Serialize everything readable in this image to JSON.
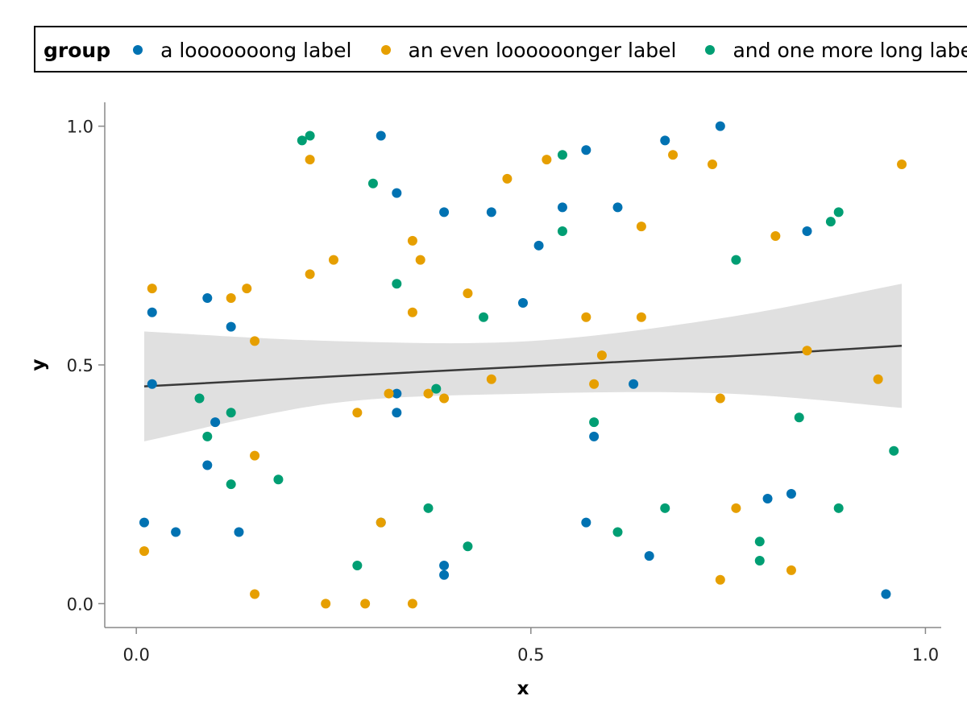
{
  "chart_data": {
    "type": "scatter",
    "xlabel": "x",
    "ylabel": "y",
    "xlim": [
      -0.04,
      1.02
    ],
    "ylim": [
      -0.05,
      1.05
    ],
    "xticks": [
      0.0,
      0.5,
      1.0
    ],
    "xtick_labels": [
      "0.0",
      "0.5",
      "1.0"
    ],
    "yticks": [
      0.0,
      0.5,
      1.0
    ],
    "ytick_labels": [
      "0.0",
      "0.5",
      "1.0"
    ],
    "grid": false,
    "legend": {
      "title": "group",
      "placement": "top",
      "entries": [
        "a looooooong label",
        "an even loooooonger label",
        "and one more long label"
      ]
    },
    "series": [
      {
        "name": "a looooooong label",
        "color": "#0072b2",
        "points": [
          [
            0.01,
            0.17
          ],
          [
            0.02,
            0.61
          ],
          [
            0.02,
            0.46
          ],
          [
            0.05,
            0.15
          ],
          [
            0.09,
            0.64
          ],
          [
            0.09,
            0.29
          ],
          [
            0.1,
            0.38
          ],
          [
            0.12,
            0.58
          ],
          [
            0.13,
            0.15
          ],
          [
            0.31,
            0.98
          ],
          [
            0.33,
            0.44
          ],
          [
            0.33,
            0.4
          ],
          [
            0.33,
            0.86
          ],
          [
            0.31,
            0.17
          ],
          [
            0.39,
            0.82
          ],
          [
            0.39,
            0.08
          ],
          [
            0.39,
            0.06
          ],
          [
            0.45,
            0.82
          ],
          [
            0.49,
            0.63
          ],
          [
            0.51,
            0.75
          ],
          [
            0.54,
            0.83
          ],
          [
            0.57,
            0.95
          ],
          [
            0.57,
            0.17
          ],
          [
            0.58,
            0.35
          ],
          [
            0.61,
            0.83
          ],
          [
            0.63,
            0.46
          ],
          [
            0.65,
            0.1
          ],
          [
            0.67,
            0.97
          ],
          [
            0.74,
            1.0
          ],
          [
            0.8,
            0.22
          ],
          [
            0.83,
            0.23
          ],
          [
            0.85,
            0.78
          ],
          [
            0.95,
            0.02
          ]
        ]
      },
      {
        "name": "an even loooooonger label",
        "color": "#e69f00",
        "points": [
          [
            0.01,
            0.11
          ],
          [
            0.02,
            0.66
          ],
          [
            0.12,
            0.64
          ],
          [
            0.14,
            0.66
          ],
          [
            0.15,
            0.55
          ],
          [
            0.15,
            0.31
          ],
          [
            0.15,
            0.02
          ],
          [
            0.22,
            0.93
          ],
          [
            0.22,
            0.69
          ],
          [
            0.24,
            0.0
          ],
          [
            0.25,
            0.72
          ],
          [
            0.28,
            0.4
          ],
          [
            0.29,
            0.0
          ],
          [
            0.31,
            0.17
          ],
          [
            0.32,
            0.44
          ],
          [
            0.35,
            0.76
          ],
          [
            0.35,
            0.61
          ],
          [
            0.36,
            0.72
          ],
          [
            0.35,
            0.0
          ],
          [
            0.37,
            0.44
          ],
          [
            0.39,
            0.43
          ],
          [
            0.42,
            0.65
          ],
          [
            0.45,
            0.47
          ],
          [
            0.47,
            0.89
          ],
          [
            0.52,
            0.93
          ],
          [
            0.57,
            0.6
          ],
          [
            0.59,
            0.52
          ],
          [
            0.58,
            0.46
          ],
          [
            0.64,
            0.6
          ],
          [
            0.64,
            0.79
          ],
          [
            0.68,
            0.94
          ],
          [
            0.73,
            0.92
          ],
          [
            0.74,
            0.05
          ],
          [
            0.74,
            0.43
          ],
          [
            0.76,
            0.2
          ],
          [
            0.81,
            0.77
          ],
          [
            0.83,
            0.07
          ],
          [
            0.85,
            0.53
          ],
          [
            0.94,
            0.47
          ],
          [
            0.97,
            0.92
          ]
        ]
      },
      {
        "name": "and one more long label",
        "color": "#009e73",
        "points": [
          [
            0.08,
            0.43
          ],
          [
            0.09,
            0.35
          ],
          [
            0.12,
            0.25
          ],
          [
            0.12,
            0.4
          ],
          [
            0.18,
            0.26
          ],
          [
            0.21,
            0.97
          ],
          [
            0.22,
            0.98
          ],
          [
            0.28,
            0.08
          ],
          [
            0.3,
            0.88
          ],
          [
            0.33,
            0.67
          ],
          [
            0.37,
            0.2
          ],
          [
            0.38,
            0.45
          ],
          [
            0.42,
            0.12
          ],
          [
            0.44,
            0.6
          ],
          [
            0.54,
            0.94
          ],
          [
            0.54,
            0.78
          ],
          [
            0.58,
            0.38
          ],
          [
            0.61,
            0.15
          ],
          [
            0.67,
            0.2
          ],
          [
            0.76,
            0.72
          ],
          [
            0.79,
            0.09
          ],
          [
            0.79,
            0.13
          ],
          [
            0.84,
            0.39
          ],
          [
            0.88,
            0.8
          ],
          [
            0.89,
            0.82
          ],
          [
            0.89,
            0.2
          ],
          [
            0.96,
            0.32
          ]
        ]
      }
    ],
    "trend": {
      "x": [
        0.01,
        0.25,
        0.5,
        0.75,
        0.97
      ],
      "y": [
        0.455,
        0.476,
        0.497,
        0.518,
        0.54
      ],
      "band_low": [
        0.34,
        0.42,
        0.44,
        0.44,
        0.41
      ],
      "band_high": [
        0.57,
        0.55,
        0.55,
        0.6,
        0.67
      ],
      "line_color": "#3a3a3a",
      "band_color": "#e0e0e0"
    }
  }
}
